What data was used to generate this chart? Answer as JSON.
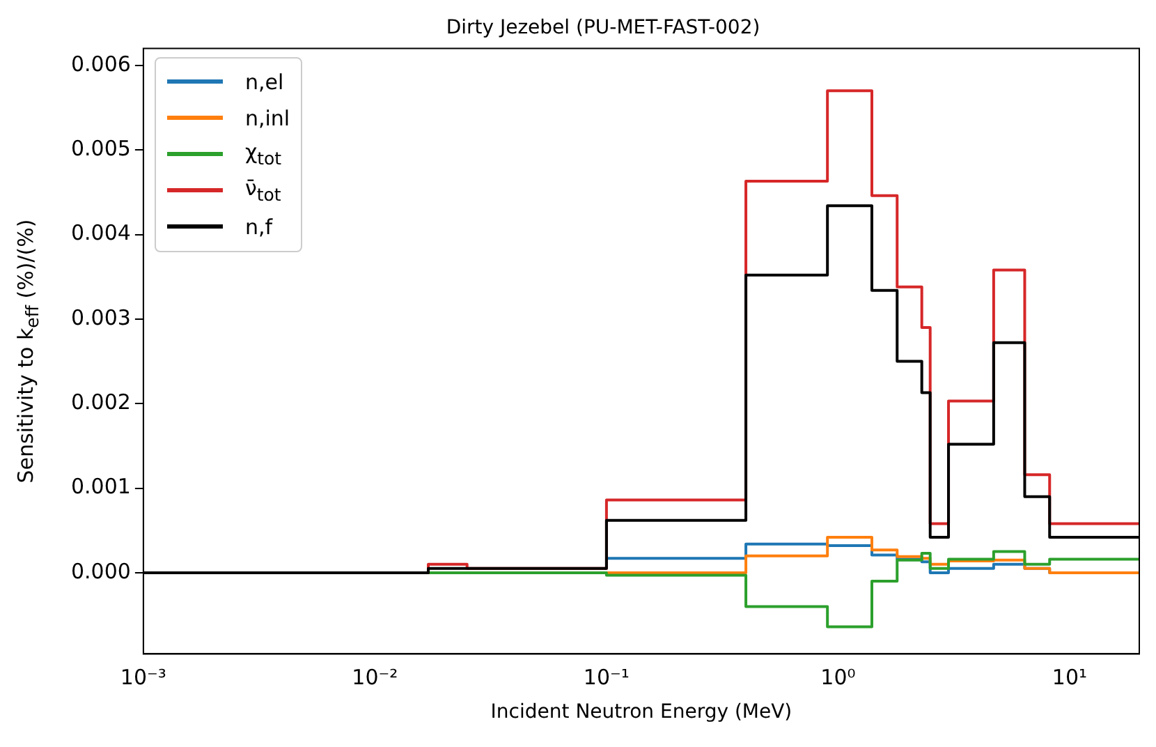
{
  "chart_data": {
    "type": "step",
    "title": "Dirty Jezebel (PU-MET-FAST-002)",
    "xlabel": "Incident Neutron Energy (MeV)",
    "ylabel": "Sensitivity to k$_{eff}$ (%)/(%)",
    "x": [
      0.001,
      0.003,
      0.017,
      0.025,
      0.1,
      0.4,
      0.9,
      1.4,
      1.8,
      2.3,
      2.5,
      3.0,
      4.7,
      6.4,
      8.2,
      20
    ],
    "series": [
      {
        "name": "n,el",
        "color": "#1f77b4",
        "values": [
          null,
          null,
          null,
          null,
          0.00017,
          0.00034,
          0.00032,
          0.00021,
          0.00016,
          0.00013,
          0,
          5e-05,
          0.0001,
          5e-05,
          0,
          0
        ]
      },
      {
        "name": "n,inl",
        "color": "#ff7f0e",
        "values": [
          null,
          null,
          null,
          null,
          0,
          0.0002,
          0.00042,
          0.00027,
          0.00019,
          0.00017,
          0.0001,
          0.00014,
          0.00015,
          5e-05,
          0,
          0
        ]
      },
      {
        "name": "χ$_{tot}$",
        "color": "#2ca02c",
        "values": [
          null,
          null,
          0,
          0,
          -3e-05,
          -0.0004,
          -0.00064,
          -0.0001,
          0.00015,
          0.00023,
          5e-05,
          0.00016,
          0.00025,
          0.0001,
          0.00016,
          0.00016
        ]
      },
      {
        "name": "ν̄$_{tot}$",
        "color": "#d62728",
        "values": [
          0,
          0,
          0.0001,
          5e-05,
          0.00086,
          0.00463,
          0.0057,
          0.00446,
          0.00338,
          0.0029,
          0.00058,
          0.00203,
          0.00358,
          0.00116,
          0.00058,
          0.00058
        ]
      },
      {
        "name": "n,f",
        "color": "#000000",
        "values": [
          0,
          0,
          5e-05,
          5e-05,
          0.00062,
          0.00352,
          0.00434,
          0.00334,
          0.0025,
          0.00213,
          0.00042,
          0.00152,
          0.00272,
          0.0009,
          0.00042,
          0.00042
        ]
      }
    ],
    "log": "x",
    "xlim": [
      0.001,
      20
    ],
    "xticks": [
      {
        "value": 0.001,
        "label": "10⁻³"
      },
      {
        "value": 0.01,
        "label": "10⁻²"
      },
      {
        "value": 0.1,
        "label": "10⁻¹"
      },
      {
        "value": 1,
        "label": "10⁰"
      },
      {
        "value": 10,
        "label": "10¹"
      }
    ],
    "ylim": [
      -0.00096,
      0.0062
    ],
    "yticks": [
      {
        "value": 0,
        "label": "0.000"
      },
      {
        "value": 0.001,
        "label": "0.001"
      },
      {
        "value": 0.002,
        "label": "0.002"
      },
      {
        "value": 0.003,
        "label": "0.003"
      },
      {
        "value": 0.004,
        "label": "0.004"
      },
      {
        "value": 0.005,
        "label": "0.005"
      },
      {
        "value": 0.006,
        "label": "0.006"
      }
    ],
    "grid": false,
    "legend": "top left"
  }
}
